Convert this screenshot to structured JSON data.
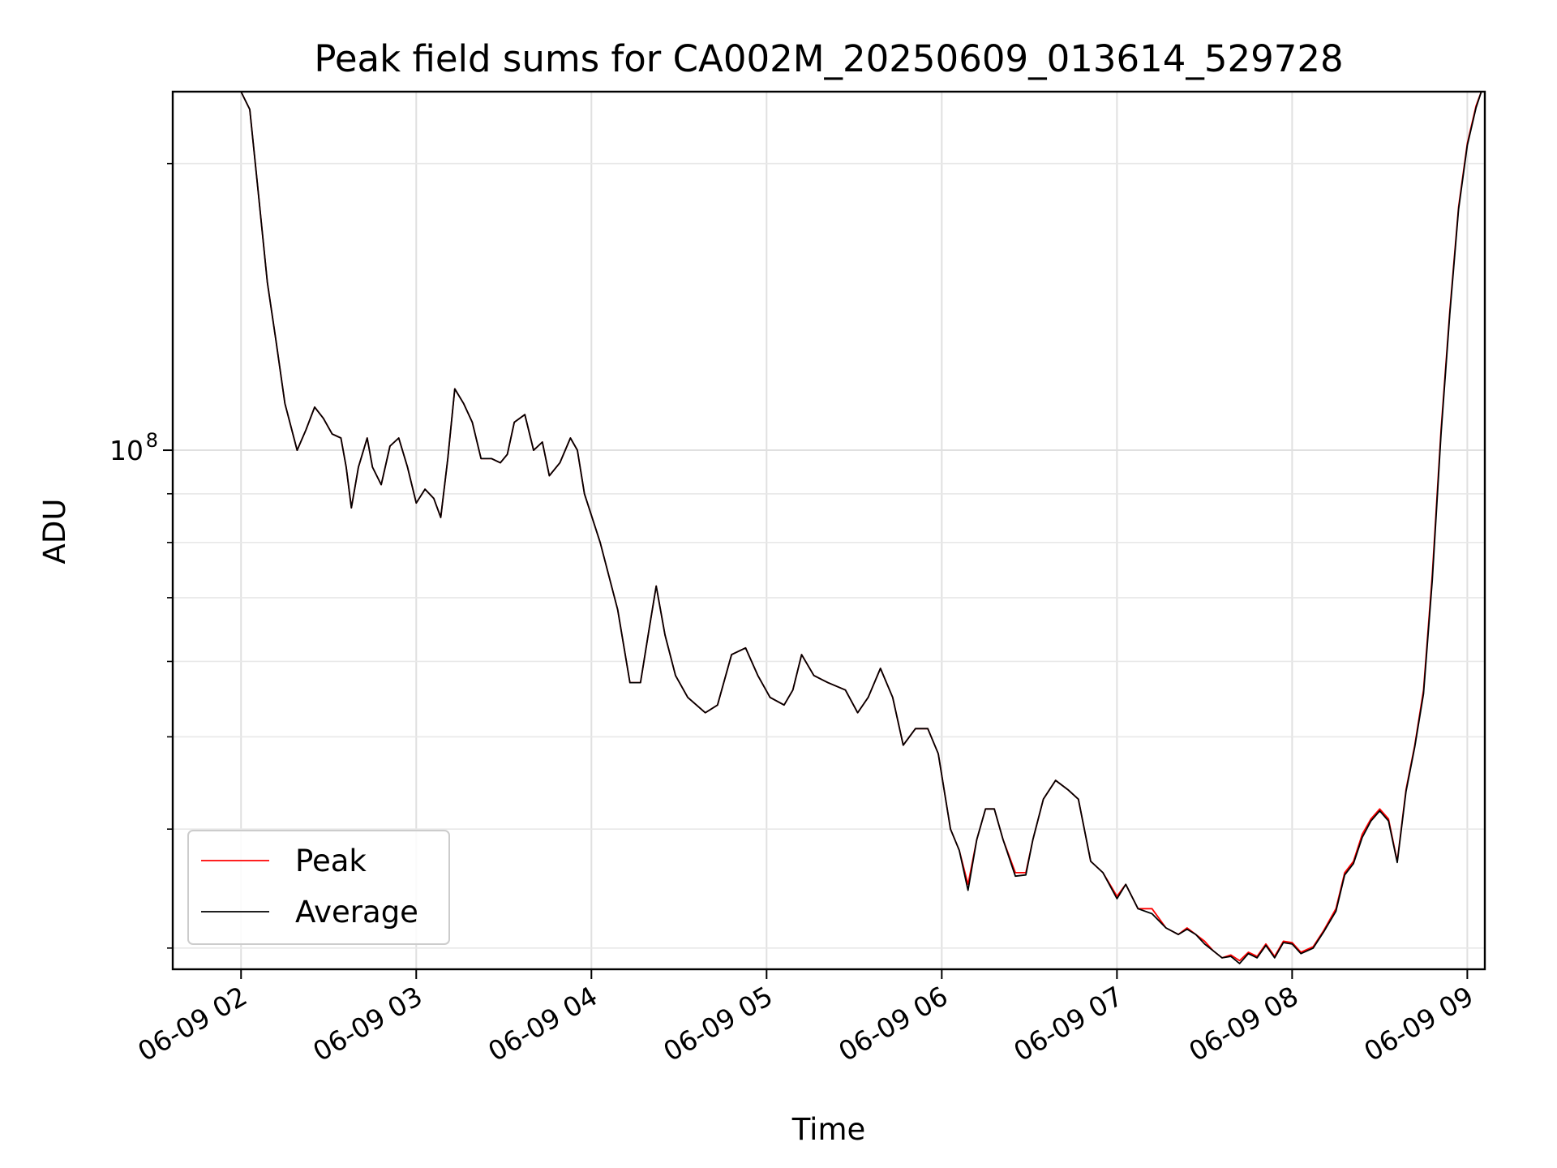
{
  "chart_data": {
    "type": "line",
    "title": "Peak field sums for CA002M_20250609_013614_529728",
    "xlabel": "Time",
    "ylabel": "ADU",
    "yscale": "log",
    "grid": true,
    "legend_position": "lower-left",
    "x_ticks": [
      "06-09 02",
      "06-09 03",
      "06-09 04",
      "06-09 05",
      "06-09 06",
      "06-09 07",
      "06-09 08",
      "06-09 09"
    ],
    "y_major_ticks": [
      {
        "value": 100000000,
        "mantissa": "10",
        "exponent": "8"
      }
    ],
    "y_minor_ticks": [
      30000000,
      40000000,
      50000000,
      60000000,
      70000000,
      80000000,
      90000000,
      200000000
    ],
    "xlim_hours": [
      1.61,
      9.1
    ],
    "ylim": [
      28500000,
      238000000
    ],
    "series": [
      {
        "name": "Peak",
        "color": "#ff0000",
        "points": [
          [
            2.0,
            238000000
          ],
          [
            2.05,
            228000000
          ],
          [
            2.1,
            185000000
          ],
          [
            2.15,
            150000000
          ],
          [
            2.2,
            130000000
          ],
          [
            2.25,
            112000000
          ],
          [
            2.32,
            100000000
          ],
          [
            2.37,
            105000000
          ],
          [
            2.42,
            111000000
          ],
          [
            2.47,
            108000000
          ],
          [
            2.52,
            104000000
          ],
          [
            2.57,
            103000000
          ],
          [
            2.6,
            96000000
          ],
          [
            2.63,
            87000000
          ],
          [
            2.67,
            96000000
          ],
          [
            2.72,
            103000000
          ],
          [
            2.75,
            96000000
          ],
          [
            2.8,
            92000000
          ],
          [
            2.85,
            101000000
          ],
          [
            2.9,
            103000000
          ],
          [
            2.95,
            96000000
          ],
          [
            3.0,
            88000000
          ],
          [
            3.05,
            91000000
          ],
          [
            3.1,
            89000000
          ],
          [
            3.14,
            85000000
          ],
          [
            3.18,
            98000000
          ],
          [
            3.22,
            116000000
          ],
          [
            3.27,
            112000000
          ],
          [
            3.32,
            107000000
          ],
          [
            3.37,
            98000000
          ],
          [
            3.43,
            98000000
          ],
          [
            3.48,
            97000000
          ],
          [
            3.52,
            99000000
          ],
          [
            3.56,
            107000000
          ],
          [
            3.62,
            109000000
          ],
          [
            3.67,
            100000000
          ],
          [
            3.72,
            102000000
          ],
          [
            3.76,
            94000000
          ],
          [
            3.82,
            97000000
          ],
          [
            3.88,
            103000000
          ],
          [
            3.92,
            100000000
          ],
          [
            3.96,
            90000000
          ],
          [
            4.05,
            80000000
          ],
          [
            4.15,
            68000000
          ],
          [
            4.22,
            57000000
          ],
          [
            4.28,
            57000000
          ],
          [
            4.33,
            65000000
          ],
          [
            4.37,
            72000000
          ],
          [
            4.42,
            64000000
          ],
          [
            4.48,
            58000000
          ],
          [
            4.55,
            55000000
          ],
          [
            4.65,
            53000000
          ],
          [
            4.72,
            54000000
          ],
          [
            4.8,
            61000000
          ],
          [
            4.88,
            62000000
          ],
          [
            4.95,
            58000000
          ],
          [
            5.02,
            55000000
          ],
          [
            5.1,
            54000000
          ],
          [
            5.15,
            56000000
          ],
          [
            5.2,
            61000000
          ],
          [
            5.27,
            58000000
          ],
          [
            5.35,
            57000000
          ],
          [
            5.45,
            56000000
          ],
          [
            5.52,
            53000000
          ],
          [
            5.58,
            55000000
          ],
          [
            5.65,
            59000000
          ],
          [
            5.72,
            55000000
          ],
          [
            5.78,
            49000000
          ],
          [
            5.85,
            51000000
          ],
          [
            5.92,
            51000000
          ],
          [
            5.98,
            48000000
          ],
          [
            6.05,
            40000000
          ],
          [
            6.1,
            38000000
          ],
          [
            6.15,
            35000000
          ],
          [
            6.2,
            39000000
          ],
          [
            6.25,
            42000000
          ],
          [
            6.3,
            42000000
          ],
          [
            6.35,
            39000000
          ],
          [
            6.42,
            36000000
          ],
          [
            6.48,
            36000000
          ],
          [
            6.52,
            39000000
          ],
          [
            6.58,
            43000000
          ],
          [
            6.65,
            45000000
          ],
          [
            6.72,
            44000000
          ],
          [
            6.78,
            43000000
          ],
          [
            6.85,
            37000000
          ],
          [
            6.92,
            36000000
          ],
          [
            7.0,
            34000000
          ],
          [
            7.05,
            35000000
          ],
          [
            7.12,
            33000000
          ],
          [
            7.2,
            33000000
          ],
          [
            7.28,
            31500000
          ],
          [
            7.35,
            31000000
          ],
          [
            7.4,
            31500000
          ],
          [
            7.45,
            31000000
          ],
          [
            7.5,
            30500000
          ],
          [
            7.55,
            29800000
          ],
          [
            7.6,
            29300000
          ],
          [
            7.65,
            29500000
          ],
          [
            7.7,
            29100000
          ],
          [
            7.75,
            29700000
          ],
          [
            7.8,
            29400000
          ],
          [
            7.85,
            30300000
          ],
          [
            7.9,
            29400000
          ],
          [
            7.95,
            30500000
          ],
          [
            8.0,
            30400000
          ],
          [
            8.05,
            29700000
          ],
          [
            8.12,
            30100000
          ],
          [
            8.18,
            31300000
          ],
          [
            8.25,
            33000000
          ],
          [
            8.3,
            36000000
          ],
          [
            8.35,
            37000000
          ],
          [
            8.4,
            39500000
          ],
          [
            8.45,
            41000000
          ],
          [
            8.5,
            42000000
          ],
          [
            8.55,
            41000000
          ],
          [
            8.6,
            37000000
          ],
          [
            8.65,
            44000000
          ],
          [
            8.7,
            49000000
          ],
          [
            8.75,
            56000000
          ],
          [
            8.8,
            74000000
          ],
          [
            8.85,
            105000000
          ],
          [
            8.9,
            140000000
          ],
          [
            8.95,
            180000000
          ],
          [
            9.0,
            210000000
          ],
          [
            9.05,
            230000000
          ],
          [
            9.08,
            238000000
          ]
        ]
      },
      {
        "name": "Average",
        "color": "#000000",
        "points": [
          [
            2.0,
            238000000
          ],
          [
            2.05,
            228000000
          ],
          [
            2.1,
            185000000
          ],
          [
            2.15,
            150000000
          ],
          [
            2.2,
            130000000
          ],
          [
            2.25,
            112000000
          ],
          [
            2.32,
            100000000
          ],
          [
            2.37,
            105000000
          ],
          [
            2.42,
            111000000
          ],
          [
            2.47,
            108000000
          ],
          [
            2.52,
            104000000
          ],
          [
            2.57,
            103000000
          ],
          [
            2.6,
            96000000
          ],
          [
            2.63,
            87000000
          ],
          [
            2.67,
            96000000
          ],
          [
            2.72,
            103000000
          ],
          [
            2.75,
            96000000
          ],
          [
            2.8,
            92000000
          ],
          [
            2.85,
            101000000
          ],
          [
            2.9,
            103000000
          ],
          [
            2.95,
            96000000
          ],
          [
            3.0,
            88000000
          ],
          [
            3.05,
            91000000
          ],
          [
            3.1,
            89000000
          ],
          [
            3.14,
            85000000
          ],
          [
            3.18,
            98000000
          ],
          [
            3.22,
            116000000
          ],
          [
            3.27,
            112000000
          ],
          [
            3.32,
            107000000
          ],
          [
            3.37,
            98000000
          ],
          [
            3.43,
            98000000
          ],
          [
            3.48,
            97000000
          ],
          [
            3.52,
            99000000
          ],
          [
            3.56,
            107000000
          ],
          [
            3.62,
            109000000
          ],
          [
            3.67,
            100000000
          ],
          [
            3.72,
            102000000
          ],
          [
            3.76,
            94000000
          ],
          [
            3.82,
            97000000
          ],
          [
            3.88,
            103000000
          ],
          [
            3.92,
            100000000
          ],
          [
            3.96,
            90000000
          ],
          [
            4.05,
            80000000
          ],
          [
            4.15,
            68000000
          ],
          [
            4.22,
            57000000
          ],
          [
            4.28,
            57000000
          ],
          [
            4.33,
            65000000
          ],
          [
            4.37,
            72000000
          ],
          [
            4.42,
            64000000
          ],
          [
            4.48,
            58000000
          ],
          [
            4.55,
            55000000
          ],
          [
            4.65,
            53000000
          ],
          [
            4.72,
            54000000
          ],
          [
            4.8,
            61000000
          ],
          [
            4.88,
            62000000
          ],
          [
            4.95,
            58000000
          ],
          [
            5.02,
            55000000
          ],
          [
            5.1,
            54000000
          ],
          [
            5.15,
            56000000
          ],
          [
            5.2,
            61000000
          ],
          [
            5.27,
            58000000
          ],
          [
            5.35,
            57000000
          ],
          [
            5.45,
            56000000
          ],
          [
            5.52,
            53000000
          ],
          [
            5.58,
            55000000
          ],
          [
            5.65,
            59000000
          ],
          [
            5.72,
            55000000
          ],
          [
            5.78,
            49000000
          ],
          [
            5.85,
            51000000
          ],
          [
            5.92,
            51000000
          ],
          [
            5.98,
            48000000
          ],
          [
            6.05,
            40000000
          ],
          [
            6.1,
            38000000
          ],
          [
            6.15,
            34500000
          ],
          [
            6.2,
            39000000
          ],
          [
            6.25,
            42000000
          ],
          [
            6.3,
            42000000
          ],
          [
            6.35,
            39000000
          ],
          [
            6.42,
            35700000
          ],
          [
            6.48,
            35800000
          ],
          [
            6.52,
            39000000
          ],
          [
            6.58,
            43000000
          ],
          [
            6.65,
            45000000
          ],
          [
            6.72,
            44000000
          ],
          [
            6.78,
            43000000
          ],
          [
            6.85,
            37000000
          ],
          [
            6.92,
            36000000
          ],
          [
            7.0,
            33800000
          ],
          [
            7.05,
            35000000
          ],
          [
            7.12,
            33000000
          ],
          [
            7.2,
            32600000
          ],
          [
            7.28,
            31500000
          ],
          [
            7.35,
            31000000
          ],
          [
            7.4,
            31400000
          ],
          [
            7.45,
            31000000
          ],
          [
            7.5,
            30300000
          ],
          [
            7.55,
            29800000
          ],
          [
            7.6,
            29300000
          ],
          [
            7.65,
            29400000
          ],
          [
            7.7,
            28900000
          ],
          [
            7.75,
            29600000
          ],
          [
            7.8,
            29300000
          ],
          [
            7.85,
            30200000
          ],
          [
            7.9,
            29300000
          ],
          [
            7.95,
            30400000
          ],
          [
            8.0,
            30300000
          ],
          [
            8.05,
            29600000
          ],
          [
            8.12,
            30000000
          ],
          [
            8.18,
            31200000
          ],
          [
            8.25,
            32800000
          ],
          [
            8.3,
            35800000
          ],
          [
            8.35,
            36800000
          ],
          [
            8.4,
            39200000
          ],
          [
            8.45,
            40800000
          ],
          [
            8.5,
            41800000
          ],
          [
            8.55,
            40800000
          ],
          [
            8.6,
            36900000
          ],
          [
            8.65,
            43800000
          ],
          [
            8.7,
            48800000
          ],
          [
            8.75,
            55500000
          ],
          [
            8.8,
            73000000
          ],
          [
            8.85,
            104000000
          ],
          [
            8.9,
            139000000
          ],
          [
            8.95,
            179000000
          ],
          [
            9.0,
            209000000
          ],
          [
            9.05,
            229000000
          ],
          [
            9.08,
            238000000
          ]
        ]
      }
    ]
  }
}
